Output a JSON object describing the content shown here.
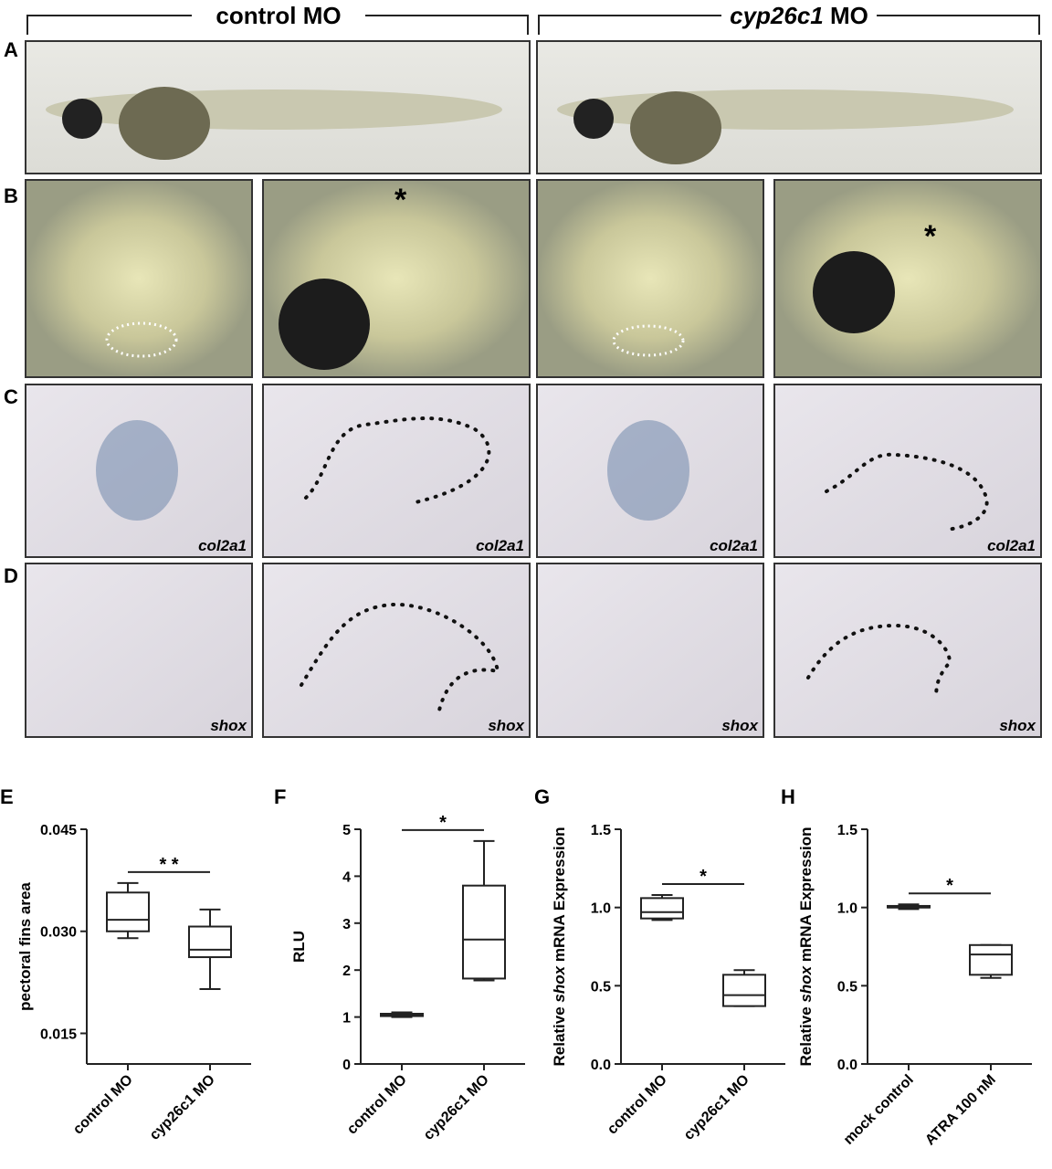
{
  "header": {
    "left": "control MO",
    "right_gene": "cyp26c1",
    "right_suffix": "MO"
  },
  "panels": [
    "A",
    "B",
    "C",
    "D"
  ],
  "photo_labels": {
    "C": [
      "col2a1",
      "col2a1",
      "col2a1",
      "col2a1"
    ],
    "D": [
      "shox",
      "shox",
      "shox",
      "shox"
    ]
  },
  "chart_data": [
    {
      "type": "box",
      "panel": "E",
      "ylabel": "pectoral fins area",
      "categories": [
        "control MO",
        "cyp26c1 MO"
      ],
      "boxes": [
        {
          "min": 0.029,
          "q1": 0.03,
          "median": 0.0317,
          "q3": 0.0357,
          "max": 0.0371
        },
        {
          "min": 0.0215,
          "q1": 0.0262,
          "median": 0.0273,
          "q3": 0.0307,
          "max": 0.0332
        }
      ],
      "ylim": [
        0.0105,
        0.045
      ],
      "yticks": [
        0.015,
        {
          "value": 0.03,
          "label": "0.030"
        },
        0.045
      ],
      "annotation": "* *"
    },
    {
      "type": "box",
      "panel": "F",
      "ylabel": "RLU",
      "categories": [
        "control MO",
        "cyp26c1 MO"
      ],
      "boxes": [
        {
          "min": 1.0,
          "q1": 1.02,
          "median": 1.05,
          "q3": 1.07,
          "max": 1.1
        },
        {
          "min": 1.78,
          "q1": 1.82,
          "median": 2.65,
          "q3": 3.8,
          "max": 4.75
        }
      ],
      "ylim": [
        0,
        5
      ],
      "yticks": [
        0,
        1,
        2,
        3,
        4,
        5
      ],
      "annotation": "*"
    },
    {
      "type": "box",
      "panel": "G",
      "ylabel": "Relative",
      "ylabel_gene": "shox",
      "ylabel_rest": "mRNA Expression",
      "categories": [
        "control MO",
        "cyp26c1 MO"
      ],
      "boxes": [
        {
          "min": 0.92,
          "q1": 0.93,
          "median": 0.97,
          "q3": 1.06,
          "max": 1.08
        },
        {
          "min": 0.37,
          "q1": 0.37,
          "median": 0.44,
          "q3": 0.57,
          "max": 0.6
        }
      ],
      "ylim": [
        0,
        1.5
      ],
      "yticks": [
        {
          "value": 0,
          "label": "0.0"
        },
        0.5,
        {
          "value": 1,
          "label": "1.0"
        },
        1.5
      ],
      "annotation": "*"
    },
    {
      "type": "box",
      "panel": "H",
      "ylabel": "Relative",
      "ylabel_gene": "shox",
      "ylabel_rest": "mRNA Expression",
      "categories": [
        "mock control",
        "ATRA 100 nM"
      ],
      "boxes": [
        {
          "min": 0.99,
          "q1": 1.0,
          "median": 1.0,
          "q3": 1.01,
          "max": 1.02
        },
        {
          "min": 0.55,
          "q1": 0.57,
          "median": 0.7,
          "q3": 0.76,
          "max": 0.76
        }
      ],
      "ylim": [
        0,
        1.5
      ],
      "yticks": [
        {
          "value": 0,
          "label": "0.0"
        },
        0.5,
        {
          "value": 1,
          "label": "1.0"
        },
        1.5
      ],
      "annotation": "*"
    }
  ]
}
